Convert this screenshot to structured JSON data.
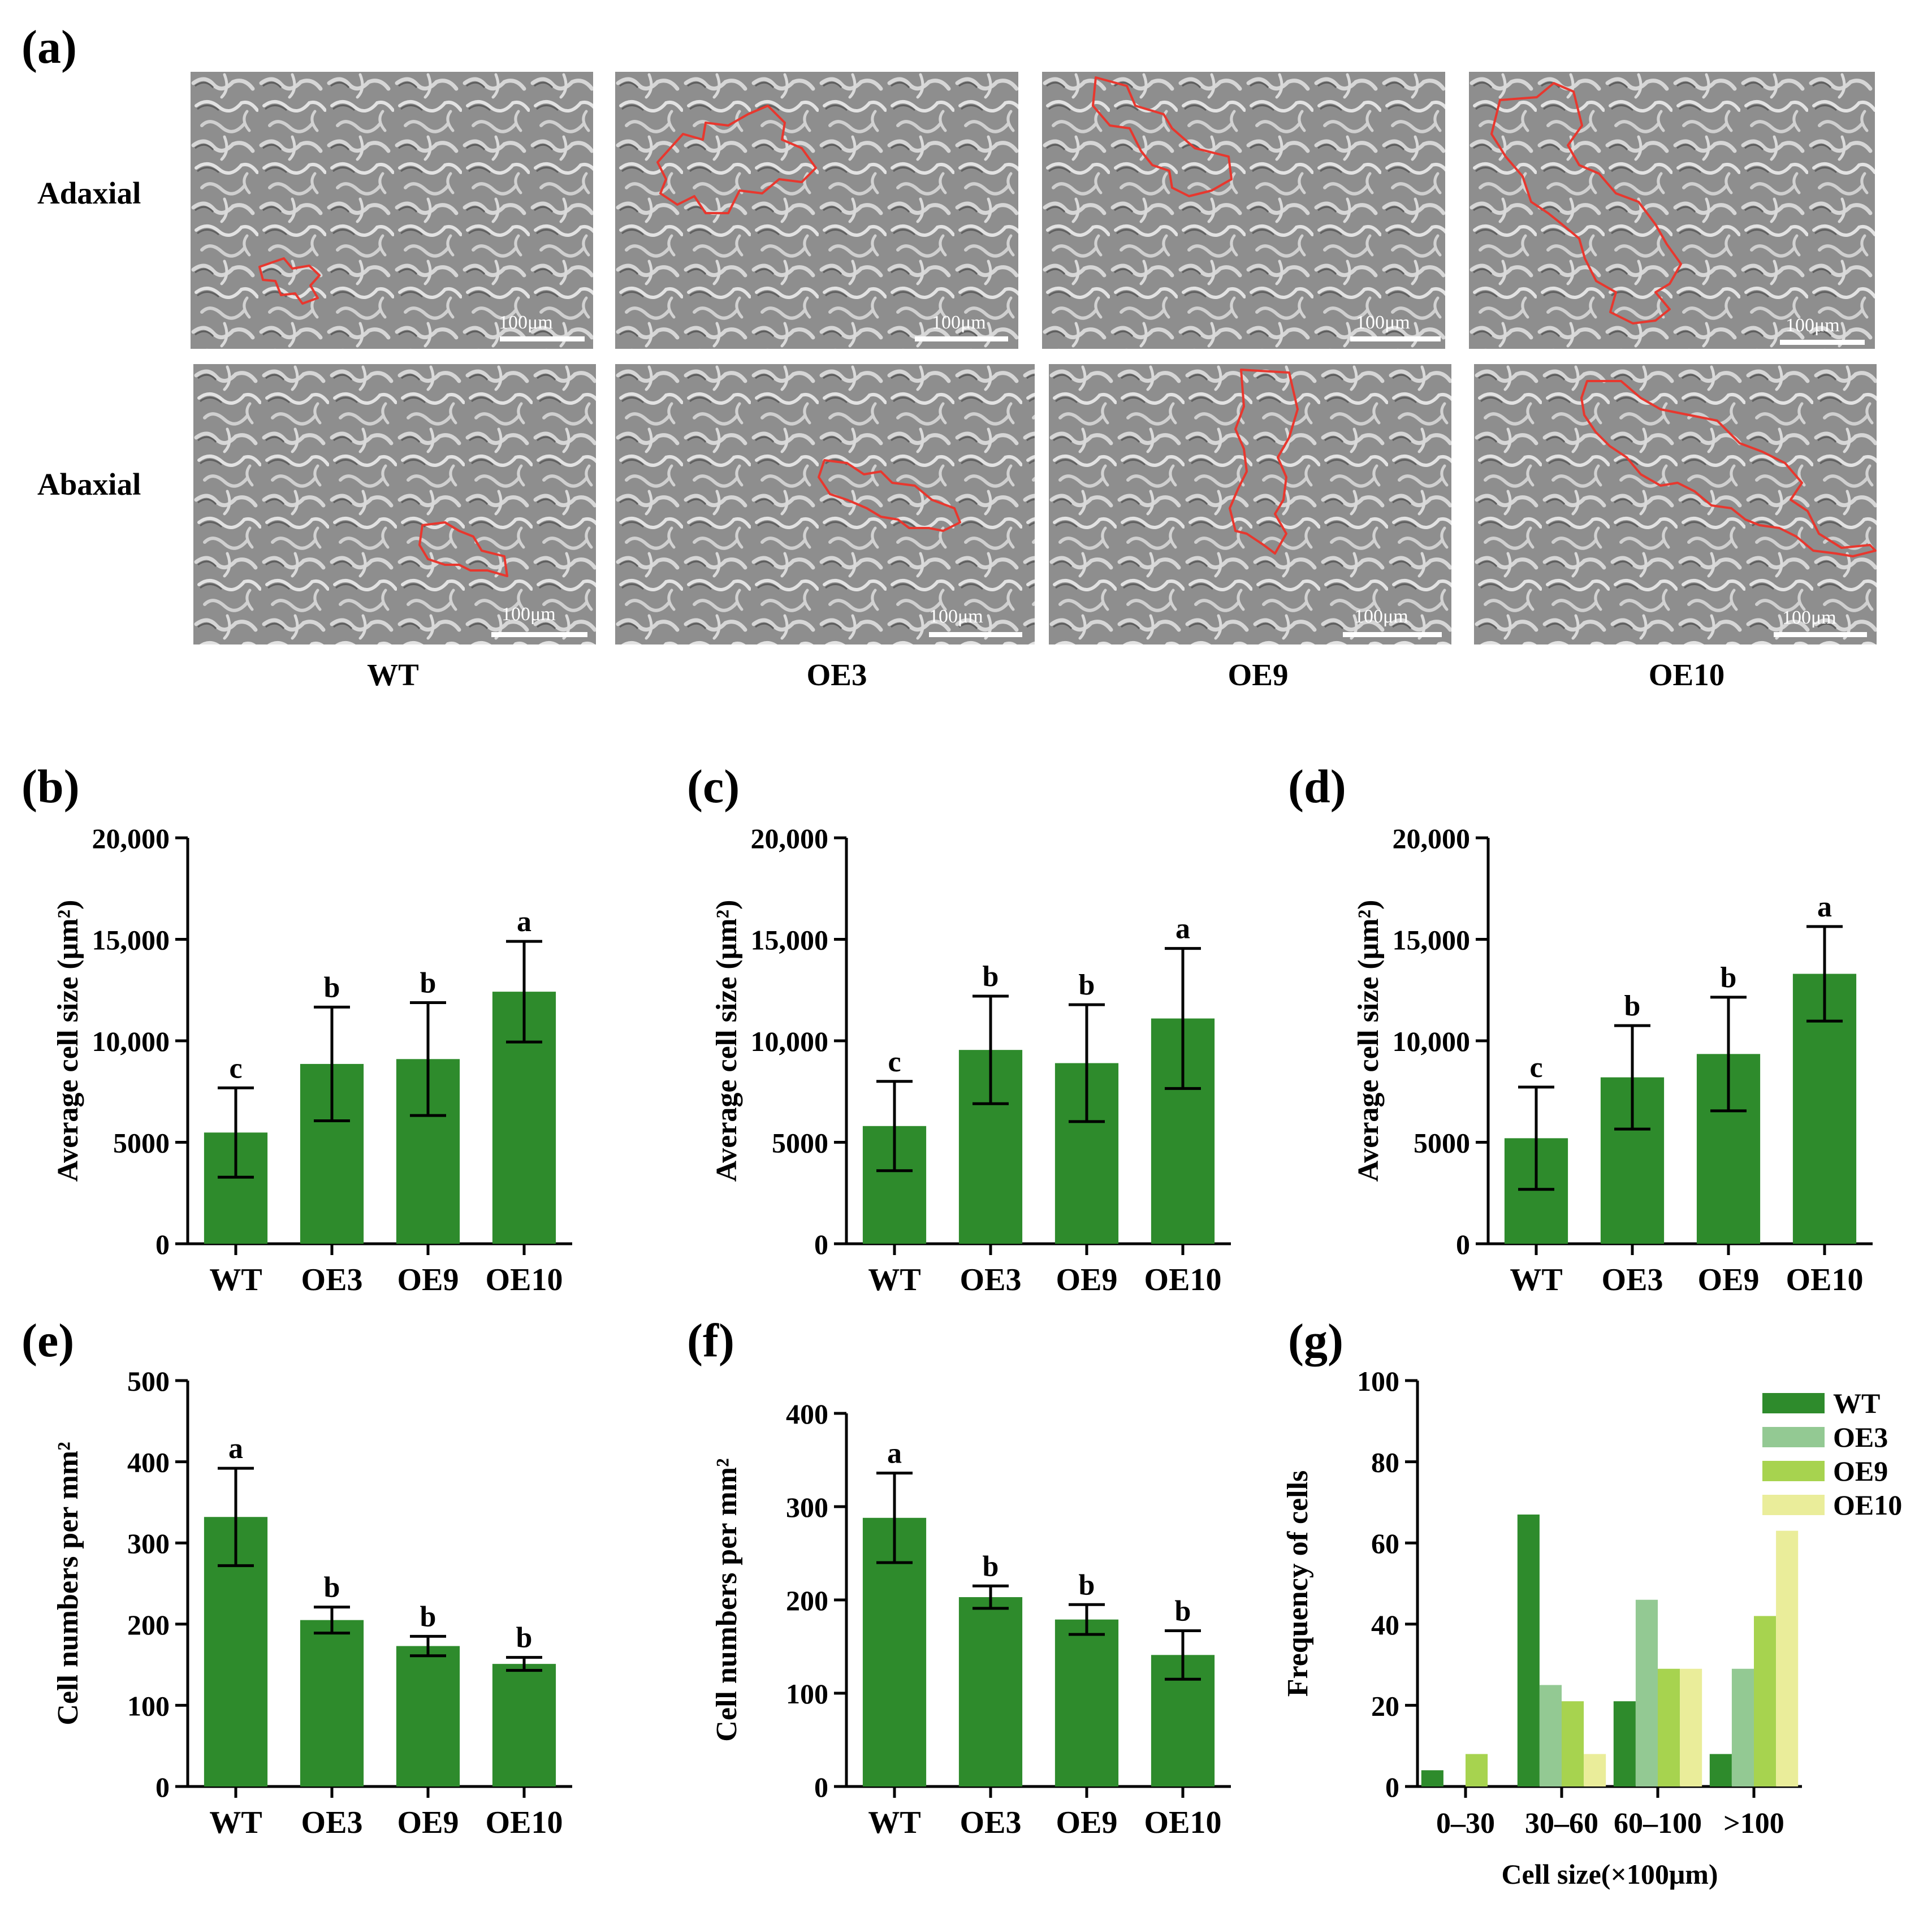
{
  "figure": {
    "panel_a_letter": "(a)",
    "row_labels": [
      "Adaxial",
      "Abaxial"
    ],
    "column_labels": [
      "WT",
      "OE3",
      "OE9",
      "OE10"
    ],
    "scale_label": "100μm",
    "outline_color": "#e8372e"
  },
  "chart_data": [
    {
      "id": "b",
      "panel_letter": "(b)",
      "type": "bar",
      "categories": [
        "WT",
        "OE3",
        "OE9",
        "OE10"
      ],
      "values": [
        5480,
        8860,
        9100,
        12420
      ],
      "errors": [
        2200,
        2800,
        2780,
        2480
      ],
      "significance": [
        "c",
        "b",
        "b",
        "a"
      ],
      "ylabel": "Average cell size (μm²)",
      "ylim": [
        0,
        20000
      ],
      "yticks": [
        0,
        5000,
        10000,
        15000,
        20000
      ],
      "ytick_labels": [
        "0",
        "5000",
        "10,000",
        "15,000",
        "20,000"
      ],
      "color": "#2e8b2c"
    },
    {
      "id": "c",
      "panel_letter": "(c)",
      "type": "bar",
      "categories": [
        "WT",
        "OE3",
        "OE9",
        "OE10"
      ],
      "values": [
        5800,
        9550,
        8900,
        11100
      ],
      "errors": [
        2200,
        2650,
        2880,
        3450
      ],
      "significance": [
        "c",
        "b",
        "b",
        "a"
      ],
      "ylabel": "Average cell size (μm²)",
      "ylim": [
        0,
        20000
      ],
      "yticks": [
        0,
        5000,
        10000,
        15000,
        20000
      ],
      "ytick_labels": [
        "0",
        "5000",
        "10,000",
        "15,000",
        "20,000"
      ],
      "color": "#2e8b2c"
    },
    {
      "id": "d",
      "panel_letter": "(d)",
      "type": "bar",
      "categories": [
        "WT",
        "OE3",
        "OE9",
        "OE10"
      ],
      "values": [
        5200,
        8200,
        9350,
        13300
      ],
      "errors": [
        2520,
        2550,
        2800,
        2330
      ],
      "significance": [
        "c",
        "b",
        "b",
        "a"
      ],
      "ylabel": "Average cell size (μm²)",
      "ylim": [
        0,
        20000
      ],
      "yticks": [
        0,
        5000,
        10000,
        15000,
        20000
      ],
      "ytick_labels": [
        "0",
        "5000",
        "10,000",
        "15,000",
        "20,000"
      ],
      "color": "#2e8b2c"
    },
    {
      "id": "e",
      "panel_letter": "(e)",
      "type": "bar",
      "categories": [
        "WT",
        "OE3",
        "OE9",
        "OE10"
      ],
      "values": [
        332,
        205,
        173,
        151
      ],
      "errors": [
        60,
        16,
        12,
        8
      ],
      "significance": [
        "a",
        "b",
        "b",
        "b"
      ],
      "ylabel": "Cell numbers per mm²",
      "ylim": [
        0,
        500
      ],
      "yticks": [
        0,
        100,
        200,
        300,
        400,
        500
      ],
      "ytick_labels": [
        "0",
        "100",
        "200",
        "300",
        "400",
        "500"
      ],
      "color": "#2e8b2c"
    },
    {
      "id": "f",
      "panel_letter": "(f)",
      "type": "bar",
      "categories": [
        "WT",
        "OE3",
        "OE9",
        "OE10"
      ],
      "values": [
        288,
        203,
        179,
        141
      ],
      "errors": [
        48,
        12,
        16,
        26
      ],
      "significance": [
        "a",
        "b",
        "b",
        "b"
      ],
      "ylabel": "Cell numbers per mm²",
      "ylim": [
        0,
        400
      ],
      "yticks": [
        0,
        100,
        200,
        300,
        400
      ],
      "ytick_labels": [
        "0",
        "100",
        "200",
        "300",
        "400"
      ],
      "color": "#2e8b2c"
    },
    {
      "id": "g",
      "panel_letter": "(g)",
      "type": "bar",
      "categories": [
        "0–30",
        "30–60",
        "60–100",
        ">100"
      ],
      "series": [
        {
          "name": "WT",
          "values": [
            4,
            67,
            21,
            8
          ],
          "color": "#2e8b2c"
        },
        {
          "name": "OE3",
          "values": [
            0,
            25,
            46,
            29
          ],
          "color": "#93c993"
        },
        {
          "name": "OE9",
          "values": [
            8,
            21,
            29,
            42
          ],
          "color": "#a7d34f"
        },
        {
          "name": "OE10",
          "values": [
            0,
            8,
            29,
            63
          ],
          "color": "#eaed9a"
        }
      ],
      "xlabel": "Cell size(×100μm)",
      "ylabel": "Frequency of cells",
      "ylim": [
        0,
        100
      ],
      "yticks": [
        0,
        20,
        40,
        60,
        80,
        100
      ],
      "ytick_labels": [
        "0",
        "20",
        "40",
        "60",
        "80",
        "100"
      ],
      "legend": "top-right"
    }
  ]
}
